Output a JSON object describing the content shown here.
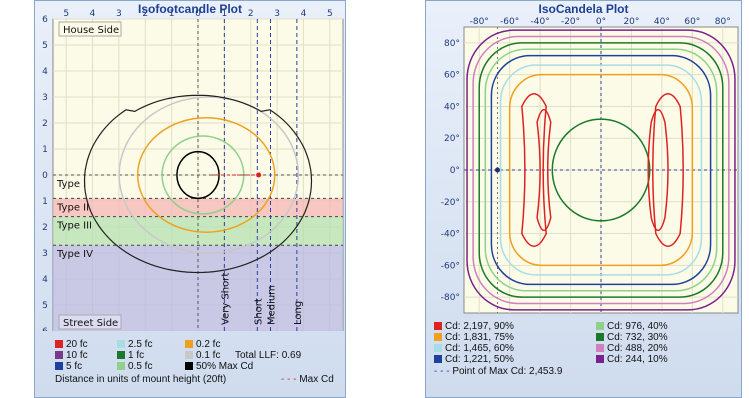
{
  "chart_data": [
    {
      "type": "isofootcandle",
      "title": "Isofootcandle Plot",
      "top_ticks": [
        "5",
        "4",
        "3",
        "2",
        "1",
        "0",
        "1",
        "2",
        "3",
        "4",
        "5"
      ],
      "left_ticks": [
        "6",
        "5",
        "4",
        "3",
        "2",
        "1",
        "0",
        "1",
        "2",
        "3",
        "4",
        "5",
        "6"
      ],
      "xlim": [
        -5.5,
        5.5
      ],
      "ylim": [
        -6,
        6
      ],
      "house_side_label": "House Side",
      "street_side_label": "Street Side",
      "type_zones": [
        {
          "label": "Type I",
          "y_from": -1.0,
          "y_to": 0.0,
          "color": ""
        },
        {
          "label": "Type II",
          "y_from": 0.9,
          "y_to": 1.6,
          "color": "#f5b6b6"
        },
        {
          "label": "Type III",
          "y_from": 1.6,
          "y_to": 2.7,
          "color": "#b6e0b0"
        },
        {
          "label": "Type IV",
          "y_from": 2.7,
          "y_to": 6.0,
          "color": "#b8b8e6"
        }
      ],
      "distance_lines": [
        {
          "label": "Very Short",
          "x": 1.0
        },
        {
          "label": "Short",
          "x": 2.25
        },
        {
          "label": "Medium",
          "x": 2.75
        },
        {
          "label": "Long",
          "x": 3.75
        }
      ],
      "contours": [
        {
          "level": "50% Max Cd",
          "color": "#000000",
          "rx": 0.8,
          "ry": 0.9
        },
        {
          "level": "0.5 fc",
          "color": "#8fd18a",
          "rx": 1.55,
          "ry": 1.5
        },
        {
          "level": "0.2 fc",
          "color": "#f0a020",
          "rx": 2.6,
          "ry": 2.2
        },
        {
          "level": "0.1 fc",
          "color": "#c8c8c8",
          "rx": 3.4,
          "ry": 3.0
        },
        {
          "level": "house-side outline",
          "color": "#222222",
          "rx": 4.1,
          "ry": 3.9
        }
      ],
      "max_cd_point": {
        "x": 2.3,
        "y": 0.0
      },
      "legend": [
        {
          "label": "20 fc",
          "color": "#dd2222"
        },
        {
          "label": "2.5 fc",
          "color": "#a8dde6"
        },
        {
          "label": "0.2 fc",
          "color": "#f0a020"
        },
        {
          "label": "10 fc",
          "color": "#7a3a8a"
        },
        {
          "label": "1 fc",
          "color": "#1a7a2a"
        },
        {
          "label": "0.1 fc",
          "color": "#c8c8c8"
        },
        {
          "label": "5 fc",
          "color": "#2040a0"
        },
        {
          "label": "0.5 fc",
          "color": "#8fd18a"
        },
        {
          "label": "50% Max Cd",
          "color": "#000000"
        }
      ],
      "total_llf": "Total LLF: 0.69",
      "footer": "Distance in units of mount height (20ft)",
      "max_cd_label": "Max Cd"
    },
    {
      "type": "isocandela",
      "title": "IsoCandela Plot",
      "top_ticks": [
        "-80°",
        "-60°",
        "-40°",
        "-20°",
        "0°",
        "20°",
        "40°",
        "60°",
        "80°"
      ],
      "left_ticks": [
        "80°",
        "60°",
        "40°",
        "20°",
        "0°",
        "-20°",
        "-40°",
        "-60°",
        "-80°"
      ],
      "xlim": [
        -90,
        90
      ],
      "ylim": [
        -90,
        90
      ],
      "contours": [
        {
          "level": "Cd: 244, 10%",
          "color": "#7a2090",
          "half": 88,
          "shape": "square"
        },
        {
          "level": "Cd: 488, 20%",
          "color": "#d080c0",
          "half": 84,
          "shape": "square"
        },
        {
          "level": "Cd: 732, 30%",
          "color": "#1a7a2a",
          "half": 80,
          "shape": "square"
        },
        {
          "level": "Cd: 976, 40%",
          "color": "#8fd18a",
          "half": 76,
          "shape": "square"
        },
        {
          "level": "Cd: 1,221, 50%",
          "color": "#2040a0",
          "half": 72,
          "shape": "square"
        },
        {
          "level": "Cd: 1,465, 60%",
          "color": "#a8dde6",
          "half": 66,
          "shape": "square"
        },
        {
          "level": "Cd: 1,831, 75%",
          "color": "#f0a020",
          "half": 60,
          "shape": "square"
        },
        {
          "level": "Cd: 1,831, 75%",
          "color": "#1a7a2a",
          "half": 32,
          "shape": "circle"
        },
        {
          "level": "Cd: 2,197, 90%",
          "color": "#dd2222",
          "half": 54,
          "shape": "lobes"
        },
        {
          "level": "Cd: 1,465, 60%",
          "color": "#dd2222",
          "half": 44,
          "shape": "lobes-inner"
        }
      ],
      "max_cd_point": {
        "x": -68,
        "y": 0
      },
      "legend": [
        {
          "label": "Cd: 2,197, 90%",
          "color": "#dd2222"
        },
        {
          "label": "Cd: 976, 40%",
          "color": "#8fd18a"
        },
        {
          "label": "Cd: 1,831, 75%",
          "color": "#f0a020"
        },
        {
          "label": "Cd: 732, 30%",
          "color": "#1a7a2a"
        },
        {
          "label": "Cd: 1,465, 60%",
          "color": "#a8dde6"
        },
        {
          "label": "Cd: 488, 20%",
          "color": "#d080c0"
        },
        {
          "label": "Cd: 1,221, 50%",
          "color": "#2040a0"
        },
        {
          "label": "Cd: 244, 10%",
          "color": "#7a2090"
        }
      ],
      "max_cd_label": "Point of Max Cd: 2,453.9"
    }
  ]
}
